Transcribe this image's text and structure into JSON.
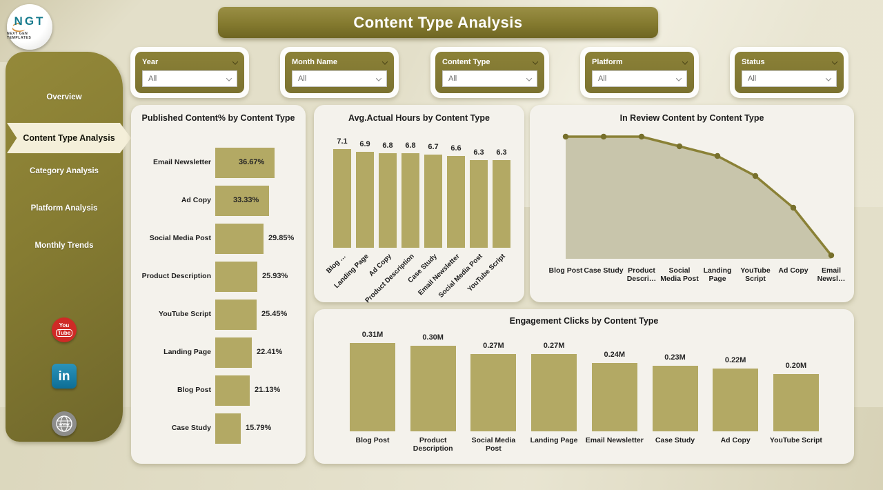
{
  "header": {
    "title": "Content Type Analysis"
  },
  "logo": {
    "text": "NGT",
    "subtext": "NEXT GEN TEMPLATES"
  },
  "sidebar": {
    "items": [
      {
        "label": "Overview",
        "active": false
      },
      {
        "label": "Content Type Analysis",
        "active": true
      },
      {
        "label": "Category Analysis",
        "active": false
      },
      {
        "label": "Platform Analysis",
        "active": false
      },
      {
        "label": "Monthly Trends",
        "active": false
      }
    ],
    "social_icons": [
      "youtube-icon",
      "linkedin-icon",
      "web-globe-icon"
    ]
  },
  "filters": [
    {
      "label": "Year",
      "value": "All"
    },
    {
      "label": "Month Name",
      "value": "All"
    },
    {
      "label": "Content Type",
      "value": "All"
    },
    {
      "label": "Platform",
      "value": "All"
    },
    {
      "label": "Status",
      "value": "All"
    }
  ],
  "colors": {
    "olive_dark": "#7b7230",
    "olive_mid": "#857b33",
    "bar_khaki": "#b3a964",
    "area_fill": "#c8c5ab",
    "line_olive": "#8a8136",
    "marker_olive": "#77702c",
    "card_bg": "#f4f2ec",
    "page_bg": "#e3dfc9",
    "active_cream": "#f4efd9"
  },
  "chart_data": [
    {
      "type": "bar",
      "orientation": "horizontal",
      "title": "Published Content% by Content Type",
      "categories": [
        "Email Newsletter",
        "Ad Copy",
        "Social Media Post",
        "Product Description",
        "YouTube Script",
        "Landing Page",
        "Blog Post",
        "Case Study"
      ],
      "values": [
        36.67,
        33.33,
        29.85,
        25.93,
        25.45,
        22.41,
        21.13,
        15.79
      ],
      "labels": [
        "36.67%",
        "33.33%",
        "29.85%",
        "25.93%",
        "25.45%",
        "22.41%",
        "21.13%",
        "15.79%"
      ],
      "xlim": [
        0,
        40
      ],
      "grid": false
    },
    {
      "type": "bar",
      "orientation": "vertical",
      "title": "Avg.Actual Hours by Content Type",
      "categories": [
        "Blog …",
        "Landing Page",
        "Ad Copy",
        "Product Description",
        "Case Study",
        "Email Newsletter",
        "Social Media Post",
        "YouTube Script"
      ],
      "values": [
        7.1,
        6.9,
        6.8,
        6.8,
        6.7,
        6.6,
        6.3,
        6.3
      ],
      "labels": [
        "7.1",
        "6.9",
        "6.8",
        "6.8",
        "6.7",
        "6.6",
        "6.3",
        "6.3"
      ],
      "ylim": [
        0,
        7.5
      ],
      "grid": false,
      "x_tick_rotation": 45
    },
    {
      "type": "area",
      "title": "In Review Content by Content Type",
      "categories": [
        "Blog Post",
        "Case Study",
        "Product Descri…",
        "Social Media Post",
        "Landing Page",
        "YouTube Script",
        "Ad Copy",
        "Email Newsl…"
      ],
      "values": [
        10,
        10,
        10,
        9.2,
        8.4,
        6.8,
        4.2,
        0.3
      ],
      "ylim": [
        0,
        10
      ],
      "grid": false,
      "value_labels_shown": false
    },
    {
      "type": "bar",
      "orientation": "vertical",
      "title": "Engagement Clicks by Content Type",
      "categories": [
        "Blog Post",
        "Product Description",
        "Social Media Post",
        "Landing Page",
        "Email Newsletter",
        "Case Study",
        "Ad Copy",
        "YouTube Script"
      ],
      "values": [
        0.31,
        0.3,
        0.27,
        0.27,
        0.24,
        0.23,
        0.22,
        0.2
      ],
      "labels": [
        "0.31M",
        "0.30M",
        "0.27M",
        "0.27M",
        "0.24M",
        "0.23M",
        "0.22M",
        "0.20M"
      ],
      "ylim": [
        0,
        0.35
      ],
      "grid": false
    }
  ]
}
